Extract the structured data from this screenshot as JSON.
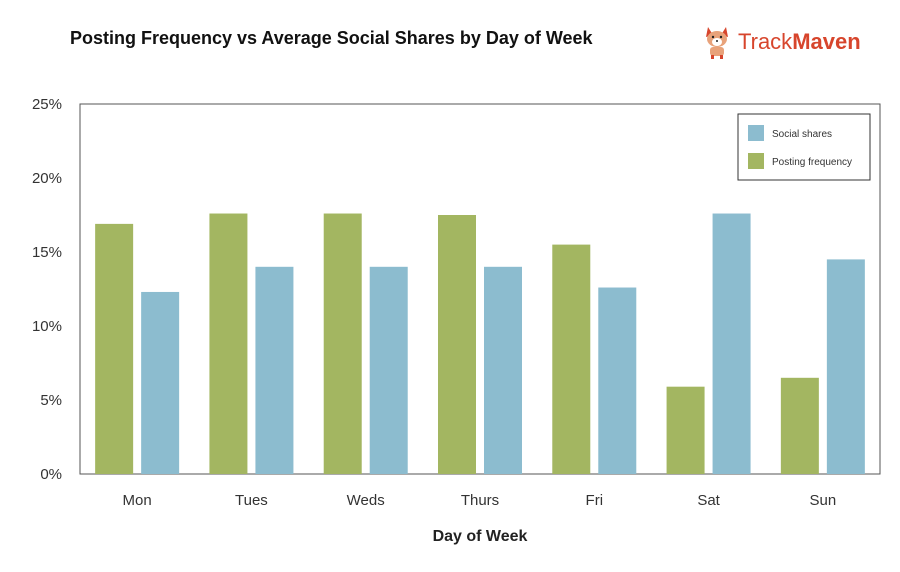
{
  "header": {
    "title": "Posting Frequency vs Average Social Shares by Day of Week",
    "brand_name_a": "Track",
    "brand_name_b": "Maven",
    "brand_color": "#d7452c",
    "brand_icon": "corgi-logo-icon"
  },
  "chart_data": {
    "type": "bar",
    "title": "Posting Frequency vs Average Social Shares by Day of Week",
    "xlabel": "Day of Week",
    "ylabel": "",
    "categories": [
      "Mon",
      "Tues",
      "Weds",
      "Thurs",
      "Fri",
      "Sat",
      "Sun"
    ],
    "series": [
      {
        "name": "Posting frequency",
        "color": "#a3b661",
        "values": [
          16.9,
          17.6,
          17.6,
          17.5,
          15.5,
          5.9,
          6.5
        ]
      },
      {
        "name": "Social shares",
        "color": "#8cbccf",
        "values": [
          12.3,
          14.0,
          14.0,
          14.0,
          12.6,
          17.6,
          14.5
        ]
      }
    ],
    "ylim": [
      0,
      25
    ],
    "yticks": [
      0,
      5,
      10,
      15,
      20,
      25
    ],
    "ytick_labels": [
      "0%",
      "5%",
      "10%",
      "15%",
      "20%",
      "25%"
    ],
    "legend": {
      "position": "top-right",
      "entries": [
        {
          "label": "Social shares",
          "color": "#8cbccf"
        },
        {
          "label": "Posting frequency",
          "color": "#a3b661"
        }
      ]
    },
    "grid": false
  }
}
